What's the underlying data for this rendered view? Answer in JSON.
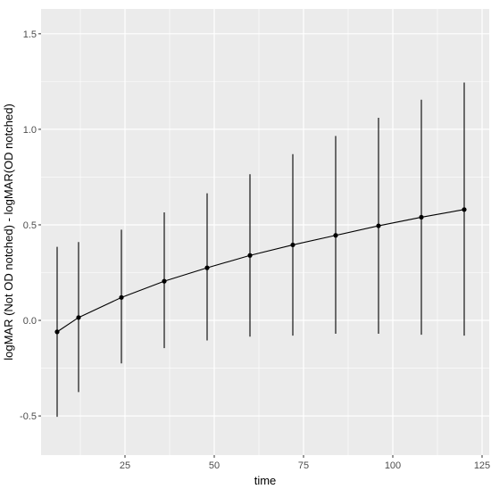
{
  "chart_data": {
    "type": "line",
    "title": "",
    "xlabel": "time",
    "ylabel": "logMAR (Not OD notched) - logMAR(OD notched)",
    "xlim": [
      1.5,
      127
    ],
    "ylim": [
      -0.705,
      1.63
    ],
    "x_ticks": [
      25,
      50,
      75,
      100,
      125
    ],
    "y_ticks": [
      -0.5,
      0.0,
      0.5,
      1.0,
      1.5
    ],
    "x_tick_labels": [
      "25",
      "50",
      "75",
      "100",
      "125"
    ],
    "y_tick_labels": [
      "-0.5",
      "0.0",
      "0.5",
      "1.0",
      "1.5"
    ],
    "grid": true,
    "legend": "none",
    "colors": {
      "panel_background": "#ebebeb",
      "grid": "#ffffff",
      "series": "#000000",
      "tick_label": "#4d4d4d"
    },
    "series": [
      {
        "x": [
          6,
          12,
          24,
          36,
          48,
          60,
          72,
          84,
          96,
          108,
          120
        ],
        "y": [
          -0.06,
          0.015,
          0.12,
          0.205,
          0.275,
          0.34,
          0.395,
          0.445,
          0.495,
          0.54,
          0.58
        ],
        "lower": [
          -0.505,
          -0.375,
          -0.225,
          -0.145,
          -0.105,
          -0.085,
          -0.08,
          -0.07,
          -0.07,
          -0.075,
          -0.08
        ],
        "upper": [
          0.385,
          0.41,
          0.475,
          0.565,
          0.665,
          0.765,
          0.87,
          0.965,
          1.06,
          1.155,
          1.245
        ]
      }
    ]
  }
}
